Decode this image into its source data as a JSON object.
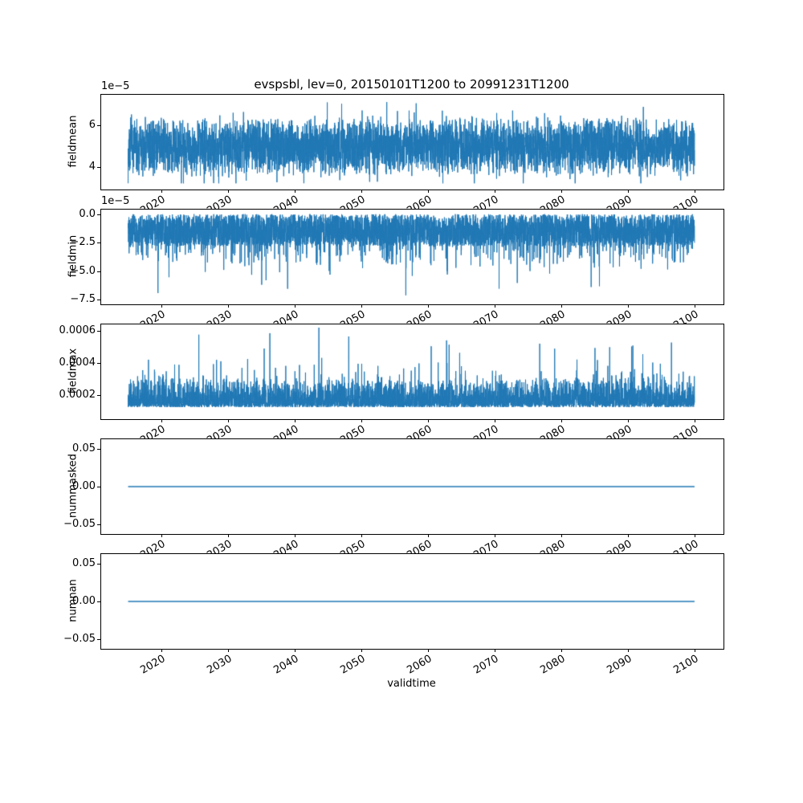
{
  "figure": {
    "title": "evspsbl, lev=0, 20150101T1200 to 20991231T1200",
    "xlabel": "validtime",
    "background": "#ffffff",
    "line_color": "#1f77b4",
    "xticks": [
      {
        "value": 2020,
        "label": "2020"
      },
      {
        "value": 2030,
        "label": "2030"
      },
      {
        "value": 2040,
        "label": "2040"
      },
      {
        "value": 2050,
        "label": "2050"
      },
      {
        "value": 2060,
        "label": "2060"
      },
      {
        "value": 2070,
        "label": "2070"
      },
      {
        "value": 2080,
        "label": "2080"
      },
      {
        "value": 2090,
        "label": "2090"
      },
      {
        "value": 2100,
        "label": "2100"
      }
    ]
  },
  "chart_data": [
    {
      "type": "line",
      "name": "fieldmean",
      "ylabel": "fieldmean",
      "offset_label": "1e−5",
      "xlim": [
        2011.0,
        2104.3
      ],
      "ylim": [
        2.9e-05,
        7.5e-05
      ],
      "x_range": [
        2015.04,
        2099.96
      ],
      "yticks": [
        {
          "value": 6e-05,
          "label": "6"
        },
        {
          "value": 4e-05,
          "label": "4"
        }
      ],
      "series": {
        "kind": "band",
        "points": 5200,
        "seed": 7,
        "base": 5e-05,
        "spread": 1.5e-05,
        "spike_prob": 0.06,
        "spike_amp": 1.1e-05,
        "min": 3.2e-05,
        "max": 7.4e-05
      }
    },
    {
      "type": "line",
      "name": "fieldmin",
      "ylabel": "fieldmin",
      "offset_label": "1e−5",
      "xlim": [
        2011.0,
        2104.3
      ],
      "ylim": [
        -7.9e-05,
        4e-06
      ],
      "x_range": [
        2015.04,
        2099.96
      ],
      "yticks": [
        {
          "value": 0,
          "label": "0.0"
        },
        {
          "value": -2.5e-05,
          "label": "−2.5"
        },
        {
          "value": -5e-05,
          "label": "−5.0"
        },
        {
          "value": -7.5e-05,
          "label": "−7.5"
        }
      ],
      "series": {
        "kind": "negspikes",
        "points": 5200,
        "seed": 21,
        "band": 2.8e-05,
        "p1": 0.14,
        "a1": 2.3e-05,
        "p2": 0.008,
        "a2": 2.6e-05,
        "min": -7.6e-05
      }
    },
    {
      "type": "line",
      "name": "fieldmax",
      "ylabel": "fieldmax",
      "xlim": [
        2011.0,
        2104.3
      ],
      "ylim": [
        5e-05,
        0.00064
      ],
      "x_range": [
        2015.04,
        2099.96
      ],
      "yticks": [
        {
          "value": 0.0006,
          "label": "0.0006"
        },
        {
          "value": 0.0004,
          "label": "0.0004"
        },
        {
          "value": 0.0002,
          "label": "0.0002"
        }
      ],
      "series": {
        "kind": "posspikes",
        "points": 5200,
        "seed": 33,
        "base": 0.000125,
        "band": 0.00019,
        "p1": 0.1,
        "a1": 0.00015,
        "p2": 0.004,
        "a2": 0.00026,
        "max": 0.00062
      }
    },
    {
      "type": "line",
      "name": "nummasked",
      "ylabel": "nummasked",
      "xlim": [
        2011.0,
        2104.3
      ],
      "ylim": [
        -0.0625,
        0.0625
      ],
      "x_range": [
        2015.04,
        2099.96
      ],
      "yticks": [
        {
          "value": 0.05,
          "label": "0.05"
        },
        {
          "value": 0.0,
          "label": "0.00"
        },
        {
          "value": -0.05,
          "label": "−0.05"
        }
      ],
      "series": {
        "kind": "const",
        "points": 2,
        "seed": 1,
        "value": 0
      }
    },
    {
      "type": "line",
      "name": "numnan",
      "ylabel": "numnan",
      "xlim": [
        2011.0,
        2104.3
      ],
      "ylim": [
        -0.0625,
        0.0625
      ],
      "x_range": [
        2015.04,
        2099.96
      ],
      "yticks": [
        {
          "value": 0.05,
          "label": "0.05"
        },
        {
          "value": 0.0,
          "label": "0.00"
        },
        {
          "value": -0.05,
          "label": "−0.05"
        }
      ],
      "series": {
        "kind": "const",
        "points": 2,
        "seed": 2,
        "value": 0
      }
    }
  ]
}
